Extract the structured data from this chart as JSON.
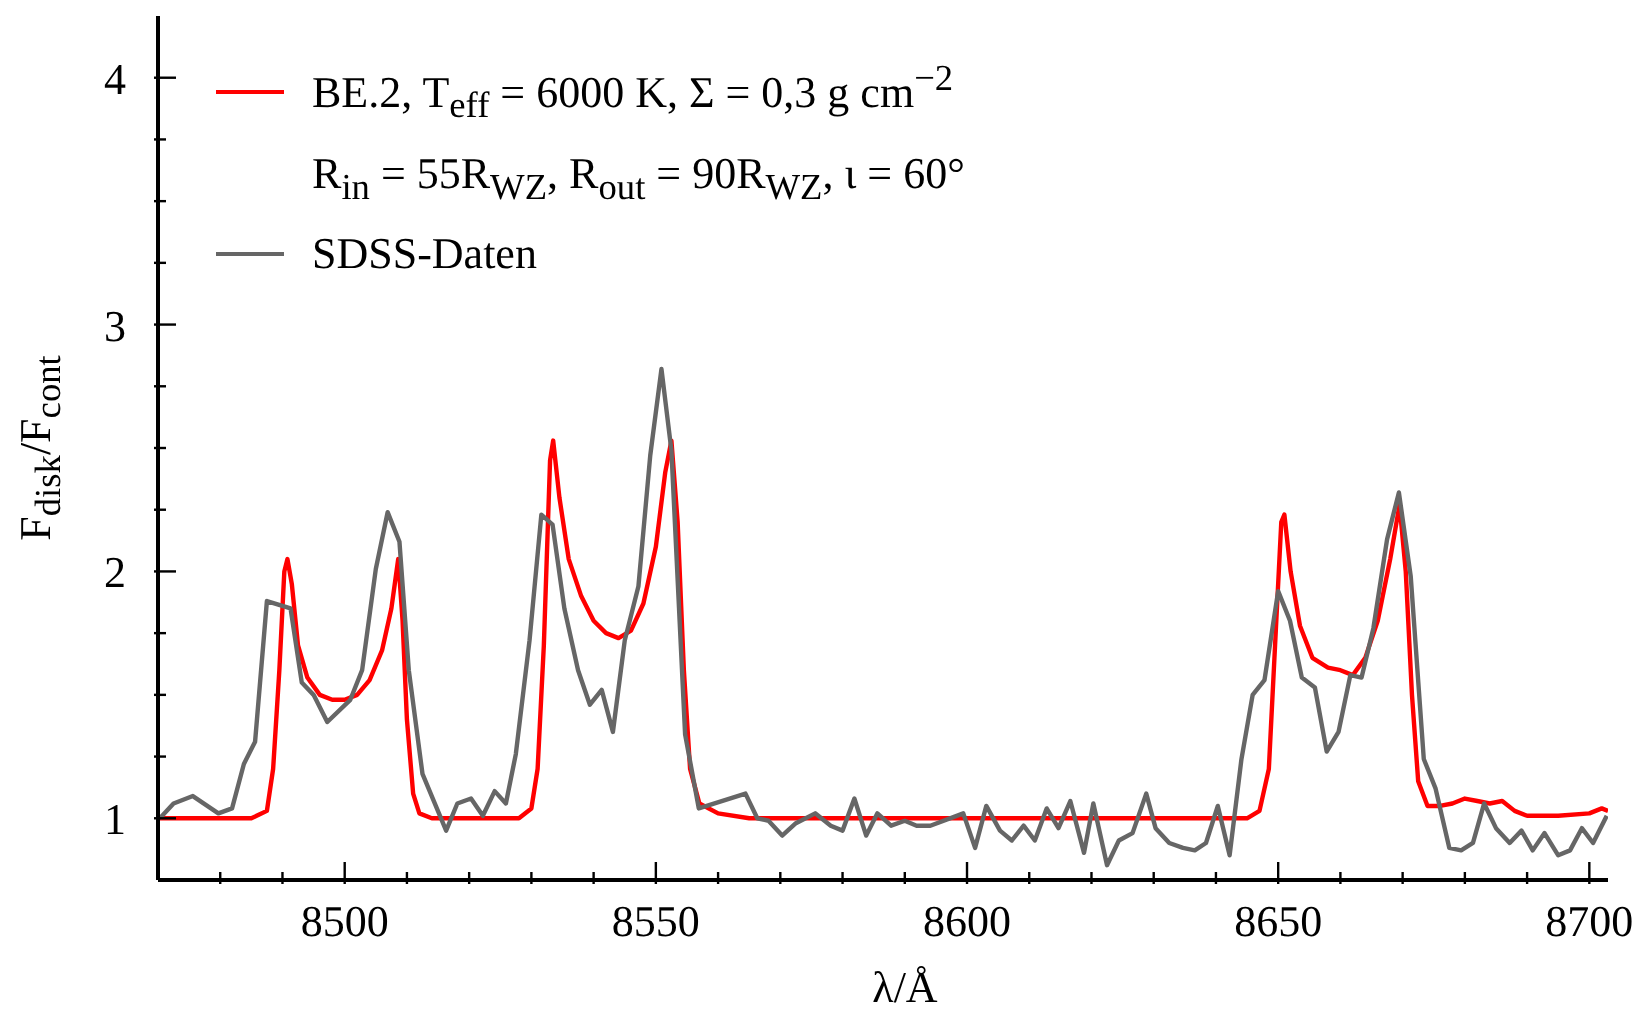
{
  "chart_data": {
    "type": "line",
    "xlabel": "λ/Å",
    "ylabel": "F$_{disk}$/F$_{cont}$",
    "xlim": [
      8470,
      8703
    ],
    "xticks": [
      {
        "value": 8480,
        "label": null
      },
      {
        "value": 8490,
        "label": null
      },
      8500,
      {
        "value": 8510,
        "label": null
      },
      {
        "value": 8520,
        "label": null
      },
      {
        "value": 8530,
        "label": null
      },
      {
        "value": 8540,
        "label": null
      },
      8550,
      {
        "value": 8560,
        "label": null
      },
      {
        "value": 8570,
        "label": null
      },
      {
        "value": 8580,
        "label": null
      },
      {
        "value": 8590,
        "label": null
      },
      8600,
      {
        "value": 8610,
        "label": null
      },
      {
        "value": 8620,
        "label": null
      },
      {
        "value": 8630,
        "label": null
      },
      {
        "value": 8640,
        "label": null
      },
      8650,
      {
        "value": 8660,
        "label": null
      },
      {
        "value": 8670,
        "label": null
      },
      {
        "value": 8680,
        "label": null
      },
      {
        "value": 8690,
        "label": null
      },
      8700
    ],
    "ylim": [
      0.75,
      4.25
    ],
    "yticks": [
      1,
      {
        "value": 1.25,
        "label": null
      },
      {
        "value": 1.5,
        "label": null
      },
      {
        "value": 1.75,
        "label": null
      },
      2,
      {
        "value": 2.25,
        "label": null
      },
      {
        "value": 2.5,
        "label": null
      },
      {
        "value": 2.75,
        "label": null
      },
      3,
      {
        "value": 3.25,
        "label": null
      },
      {
        "value": 3.5,
        "label": null
      },
      {
        "value": 3.75,
        "label": null
      },
      4
    ],
    "legend": "top left",
    "marker": "none",
    "line_style": "solid",
    "series": [
      {
        "name": "BE.2, T$_{eff}$ = 6000 K, Σ = 0,3 g cm$^{−2}$\nR$_{in}$ = 55R$_{WZ}$, R$_{out}$ = 90R$_{WZ}$, ι = 60°",
        "color": "#ff0000",
        "x": [
          8470,
          8485,
          8487.5,
          8488.5,
          8489.5,
          8490.3,
          8490.8,
          8491.5,
          8492.5,
          8494,
          8496,
          8498,
          8500,
          8502,
          8504,
          8506,
          8507.5,
          8508.6,
          8509.3,
          8510,
          8511,
          8512,
          8514,
          8528,
          8530,
          8531,
          8532,
          8533,
          8533.5,
          8534.5,
          8536,
          8538,
          8540,
          8542,
          8544,
          8546,
          8548,
          8550,
          8551.5,
          8552.5,
          8553.5,
          8554.5,
          8555.5,
          8557,
          8560,
          8565,
          8645,
          8647,
          8648.5,
          8649.5,
          8650.5,
          8651,
          8652,
          8653.5,
          8655.5,
          8658,
          8660,
          8662,
          8664,
          8666,
          8668,
          8669.5,
          8670.5,
          8671.5,
          8672.5,
          8674,
          8676,
          8678,
          8680,
          8682,
          8684,
          8686,
          8688,
          8690,
          8695,
          8700,
          8702,
          8703
        ],
        "values": [
          1.0,
          1.0,
          1.03,
          1.2,
          1.6,
          2.0,
          2.05,
          1.95,
          1.7,
          1.57,
          1.5,
          1.48,
          1.48,
          1.5,
          1.56,
          1.68,
          1.85,
          2.05,
          1.8,
          1.4,
          1.1,
          1.02,
          1.0,
          1.0,
          1.04,
          1.2,
          1.7,
          2.45,
          2.53,
          2.3,
          2.05,
          1.9,
          1.8,
          1.75,
          1.73,
          1.76,
          1.87,
          2.1,
          2.4,
          2.53,
          2.2,
          1.6,
          1.2,
          1.06,
          1.02,
          1.0,
          1.0,
          1.03,
          1.2,
          1.7,
          2.2,
          2.23,
          2.0,
          1.78,
          1.65,
          1.61,
          1.6,
          1.58,
          1.65,
          1.8,
          2.05,
          2.27,
          2.0,
          1.5,
          1.15,
          1.05,
          1.05,
          1.06,
          1.08,
          1.07,
          1.06,
          1.07,
          1.03,
          1.01,
          1.01,
          1.02,
          1.04,
          1.03
        ]
      },
      {
        "name": "SDSS-Daten",
        "color": "#666666",
        "x": [
          8470.3,
          8472.5,
          8475.6,
          8479.7,
          8481.9,
          8483.8,
          8485.6,
          8487.5,
          8491.3,
          8493.1,
          8495,
          8497.2,
          8500.9,
          8502.8,
          8505,
          8506.9,
          8508.8,
          8510.3,
          8512.5,
          8516.3,
          8518.1,
          8520.3,
          8522.2,
          8524.1,
          8525.9,
          8527.5,
          8529.7,
          8531.6,
          8533.4,
          8535.3,
          8537.5,
          8539.4,
          8541.3,
          8543.1,
          8545,
          8547.2,
          8549.1,
          8550.9,
          8552.5,
          8554.7,
          8556.9,
          8564.4,
          8566.3,
          8568.1,
          8570.3,
          8572.5,
          8575.6,
          8578.1,
          8580,
          8581.9,
          8583.8,
          8585.6,
          8587.8,
          8590,
          8591.9,
          8594.1,
          8599.4,
          8601.3,
          8603.1,
          8605.3,
          8607.2,
          8609.1,
          8610.9,
          8612.8,
          8614.7,
          8616.6,
          8618.8,
          8620.3,
          8622.5,
          8624.4,
          8626.6,
          8628.8,
          8630.3,
          8632.5,
          8634.7,
          8636.6,
          8638.4,
          8640.3,
          8642.2,
          8644.1,
          8645.9,
          8647.8,
          8650,
          8651.9,
          8653.8,
          8655.9,
          8657.8,
          8659.7,
          8661.6,
          8663.4,
          8665.3,
          8667.5,
          8669.4,
          8671.3,
          8673.4,
          8675.3,
          8677.5,
          8679.4,
          8681.3,
          8683.1,
          8685,
          8687.2,
          8689.1,
          8690.9,
          8692.8,
          8695,
          8696.9,
          8698.8,
          8700.6,
          8702.8
        ],
        "values": [
          1.0,
          1.06,
          1.09,
          1.02,
          1.04,
          1.22,
          1.31,
          1.88,
          1.85,
          1.55,
          1.5,
          1.39,
          1.48,
          1.6,
          2.01,
          2.24,
          2.12,
          1.6,
          1.18,
          0.95,
          1.06,
          1.08,
          1.01,
          1.11,
          1.06,
          1.26,
          1.72,
          2.23,
          2.19,
          1.85,
          1.6,
          1.46,
          1.52,
          1.35,
          1.72,
          1.94,
          2.47,
          2.82,
          2.49,
          1.34,
          1.04,
          1.1,
          1.0,
          0.99,
          0.93,
          0.98,
          1.02,
          0.97,
          0.95,
          1.08,
          0.93,
          1.02,
          0.97,
          0.99,
          0.97,
          0.97,
          1.02,
          0.88,
          1.05,
          0.95,
          0.91,
          0.97,
          0.91,
          1.04,
          0.96,
          1.07,
          0.86,
          1.06,
          0.81,
          0.91,
          0.94,
          1.1,
          0.96,
          0.9,
          0.88,
          0.87,
          0.9,
          1.05,
          0.85,
          1.24,
          1.5,
          1.56,
          1.92,
          1.8,
          1.57,
          1.53,
          1.27,
          1.35,
          1.58,
          1.57,
          1.77,
          2.13,
          2.32,
          1.98,
          1.24,
          1.12,
          0.88,
          0.87,
          0.9,
          1.06,
          0.96,
          0.9,
          0.95,
          0.87,
          0.94,
          0.85,
          0.87,
          0.96,
          0.9,
          1.01
        ]
      }
    ]
  }
}
